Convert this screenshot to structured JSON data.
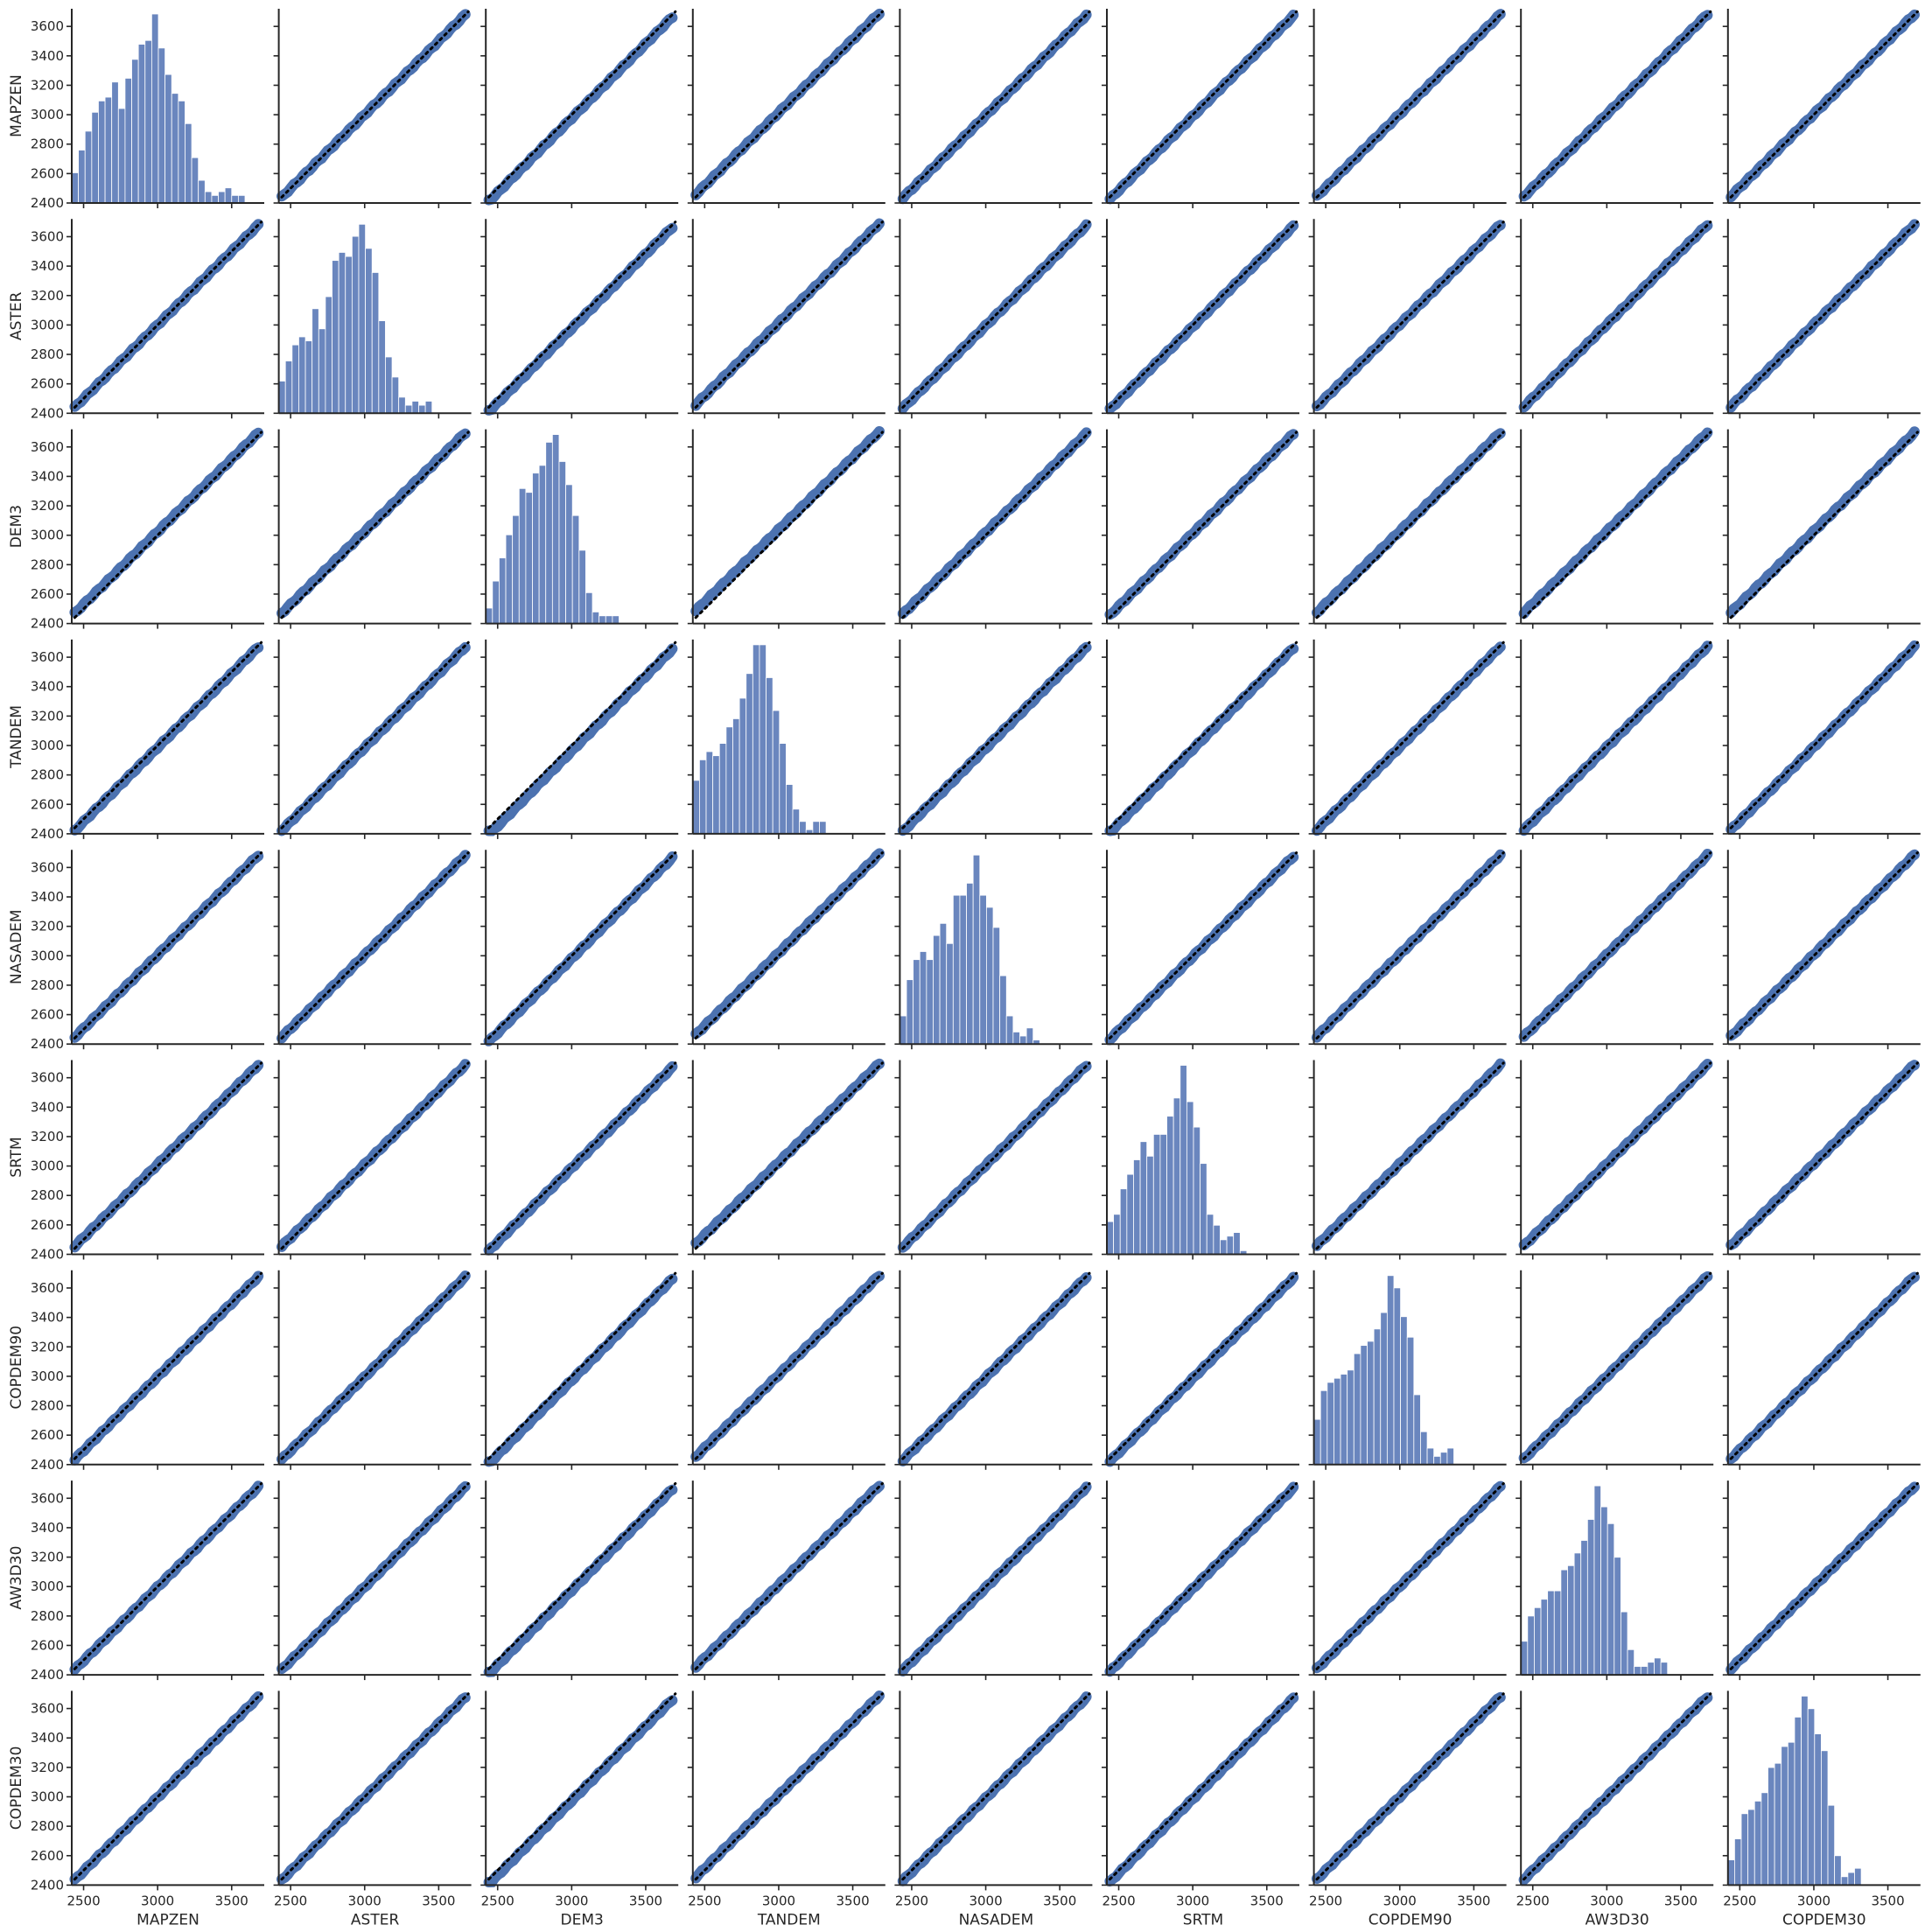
{
  "chart_data": {
    "type": "scatter",
    "kind": "pairplot",
    "variables": [
      "MAPZEN",
      "ASTER",
      "DEM3",
      "TANDEM",
      "NASADEM",
      "SRTM",
      "COPDEM90",
      "AW3D30",
      "COPDEM30"
    ],
    "xlim": [
      2420,
      3720
    ],
    "ylim": [
      2400,
      3720
    ],
    "xticks": [
      2500,
      3000,
      3500
    ],
    "yticks": [
      2400,
      2600,
      2800,
      3000,
      3200,
      3400,
      3600
    ],
    "tick_labels_x": [
      "2500",
      "3000",
      "3500"
    ],
    "tick_labels_y": [
      "2400",
      "2600",
      "2800",
      "3000",
      "3200",
      "3400",
      "3600"
    ],
    "diagonal": "histogram",
    "off_diagonal": "scatter",
    "reference_line": "y = x (dotted, black)",
    "colors": {
      "points": "#4c72b0",
      "bars": "#6a86be",
      "reference": "#000000",
      "axes": "#262626"
    },
    "histogram_bins": {
      "edges": [
        2420,
        2465,
        2510,
        2555,
        2600,
        2645,
        2690,
        2735,
        2780,
        2825,
        2870,
        2915,
        2960,
        3005,
        3050,
        3095,
        3140,
        3185,
        3230,
        3275,
        3320,
        3365,
        3410,
        3455,
        3500,
        3545,
        3590,
        3635,
        3680,
        3725
      ],
      "counts": {
        "MAPZEN": [
          8,
          14,
          19,
          24,
          27,
          28,
          32,
          25,
          33,
          38,
          42,
          43,
          50,
          41,
          34,
          29,
          27,
          21,
          12,
          6,
          3,
          2,
          3,
          4,
          2,
          2,
          0,
          0,
          0
        ],
        "ASTER": [
          8,
          13,
          17,
          19,
          18,
          26,
          21,
          29,
          38,
          40,
          39,
          44,
          47,
          41,
          35,
          23,
          14,
          9,
          4,
          2,
          3,
          2,
          3,
          0,
          0,
          0,
          0,
          0,
          0
        ],
        "DEM3": [
          4,
          11,
          17,
          23,
          28,
          35,
          34,
          39,
          41,
          47,
          49,
          42,
          36,
          28,
          19,
          8,
          3,
          2,
          2,
          2,
          0,
          0,
          0,
          0,
          0,
          0,
          0,
          0,
          0
        ],
        "TANDEM": [
          13,
          18,
          20,
          19,
          22,
          26,
          28,
          33,
          39,
          46,
          46,
          38,
          30,
          22,
          12,
          6,
          3,
          1,
          3,
          3,
          0,
          0,
          0,
          0,
          0,
          0,
          0,
          0,
          0
        ],
        "NASADEM": [
          7,
          16,
          21,
          23,
          21,
          27,
          30,
          25,
          37,
          37,
          40,
          47,
          37,
          34,
          29,
          17,
          7,
          3,
          2,
          4,
          1,
          0,
          0,
          0,
          0,
          0,
          0,
          0,
          0
        ],
        "SRTM": [
          9,
          11,
          18,
          22,
          26,
          31,
          27,
          33,
          33,
          38,
          43,
          52,
          42,
          35,
          25,
          11,
          8,
          4,
          5,
          6,
          1,
          0,
          0,
          0,
          0,
          0,
          0,
          0,
          0
        ],
        "COPDEM90": [
          11,
          18,
          20,
          21,
          22,
          23,
          27,
          29,
          30,
          33,
          37,
          46,
          43,
          36,
          31,
          17,
          8,
          4,
          2,
          3,
          4,
          0,
          0,
          0,
          0,
          0,
          0,
          0,
          0
        ],
        "AW3D30": [
          8,
          14,
          16,
          18,
          20,
          20,
          25,
          26,
          29,
          32,
          37,
          45,
          40,
          36,
          28,
          15,
          6,
          2,
          2,
          3,
          4,
          3,
          0,
          0,
          0,
          0,
          0,
          0,
          0
        ],
        "COPDEM30": [
          6,
          11,
          17,
          18,
          20,
          22,
          28,
          29,
          33,
          34,
          40,
          45,
          42,
          36,
          32,
          19,
          7,
          2,
          3,
          4,
          0,
          0,
          0,
          0,
          0,
          0,
          0,
          0,
          0
        ]
      }
    }
  }
}
